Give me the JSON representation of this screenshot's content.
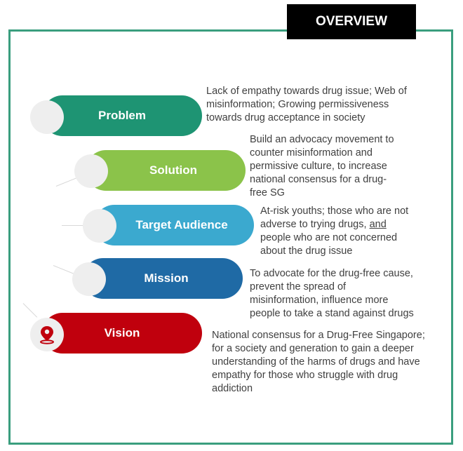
{
  "header": {
    "title": "OVERVIEW"
  },
  "items": [
    {
      "label": "Problem",
      "color": "#1e9473",
      "lines": [
        "Lack of empathy towards drug issue; Web of",
        "misinformation; Growing permissiveness",
        "towards drug acceptance in society"
      ]
    },
    {
      "label": "Solution",
      "color": "#8bc34a",
      "lines": [
        "Build an advocacy movement to",
        "counter misinformation and",
        "permissive culture, to increase",
        "national consensus for a drug-",
        "free SG"
      ]
    },
    {
      "label": "Target Audience",
      "color": "#3ba9cf",
      "lines": [
        "At-risk youths; those who are not",
        "adverse to trying drugs, ",
        "and",
        "people who are not concerned",
        "about the drug issue"
      ]
    },
    {
      "label": "Mission",
      "color": "#1f6aa5",
      "lines": [
        "To advocate for the drug-free cause,",
        "prevent the spread of",
        "misinformation, influence more",
        "people to take a stand against drugs"
      ]
    },
    {
      "label": "Vision",
      "color": "#c0000d",
      "lines": [
        "National consensus for a Drug-Free Singapore;",
        "for a society and generation to gain a deeper",
        "understanding of the harms of drugs and have",
        "empathy for those who struggle with drug",
        "addiction"
      ]
    }
  ],
  "icons": {
    "vision": "location-pin-icon"
  }
}
